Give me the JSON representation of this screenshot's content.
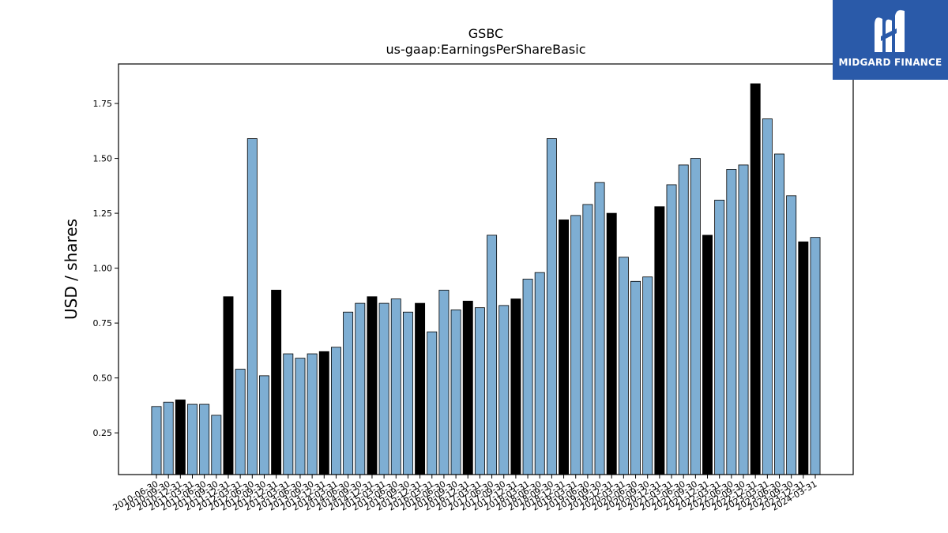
{
  "logo": {
    "text": "MIDGARD FINANCE"
  },
  "colors": {
    "regular": "#7eaed3",
    "highlight": "#000000",
    "logo_bg": "#2a5aa9"
  },
  "chart_data": {
    "type": "bar",
    "title": "GSBC",
    "subtitle": "us-gaap:EarningsPerShareBasic",
    "xlabel": "",
    "ylabel": "USD / shares",
    "ylim": [
      0.06,
      1.93
    ],
    "yticks": [
      0.25,
      0.5,
      0.75,
      1.0,
      1.25,
      1.5,
      1.75
    ],
    "grid": false,
    "categories": [
      "2010-06-30",
      "2010-09-30",
      "2010-12-31",
      "2011-03-31",
      "2011-06-30",
      "2011-09-30",
      "2011-12-31",
      "2012-03-31",
      "2012-06-30",
      "2012-09-30",
      "2012-12-31",
      "2013-03-31",
      "2013-06-30",
      "2013-09-30",
      "2013-12-31",
      "2014-03-31",
      "2014-06-30",
      "2014-09-30",
      "2014-12-31",
      "2015-03-31",
      "2015-06-30",
      "2015-09-30",
      "2015-12-31",
      "2016-03-31",
      "2016-06-30",
      "2016-09-30",
      "2016-12-31",
      "2017-03-31",
      "2017-06-30",
      "2017-09-30",
      "2017-12-31",
      "2018-03-31",
      "2018-06-30",
      "2018-09-30",
      "2018-12-31",
      "2019-03-31",
      "2019-06-30",
      "2019-09-30",
      "2019-12-31",
      "2020-03-31",
      "2020-06-30",
      "2020-09-30",
      "2020-12-31",
      "2021-03-31",
      "2021-06-30",
      "2021-09-30",
      "2021-12-31",
      "2022-03-31",
      "2022-06-30",
      "2022-09-30",
      "2022-12-31",
      "2023-03-31",
      "2023-06-30",
      "2023-09-30",
      "2023-12-31",
      "2024-03-31"
    ],
    "x_tick_labels": [
      "2010-06-30",
      "2010-09-30",
      "2010-12-31",
      "2011-03-31",
      "2011-06-30",
      "2011-09-30",
      "2011-12-31",
      "2012-03-31",
      "2012-06-30",
      "2012-09-30",
      "2012-12-31",
      "2013-03-31",
      "2013-06-30",
      "2013-09-30",
      "2013-12-31",
      "2014-03-31",
      "2014-06-30",
      "2014-09-30",
      "2014-12-31",
      "2015-03-31",
      "2015-06-30",
      "2015-09-30",
      "2015-12-31",
      "2016-03-31",
      "2016-06-30",
      "2016-09-30",
      "2016-12-31",
      "2017-03-31",
      "2017-06-30",
      "2017-09-30",
      "2017-12-31",
      "2018-03-31",
      "2018-06-30",
      "2018-09-30",
      "2018-12-31",
      "2019-03-31",
      "2019-06-30",
      "2019-09-30",
      "2019-12-31",
      "2020-03-31",
      "2020-06-30",
      "2020-09-30",
      "2020-12-31",
      "2021-03-31",
      "2021-06-30",
      "2021-09-30",
      "2021-12-31",
      "2022-03-31",
      "2022-06-30",
      "2022-09-30",
      "2022-12-31",
      "2023-03-31",
      "2023-06-30",
      "2023-09-30",
      "2023-12-31",
      "2024-03-31"
    ],
    "values": [
      0.37,
      0.39,
      0.4,
      0.38,
      0.38,
      0.33,
      0.87,
      0.54,
      1.59,
      0.51,
      0.9,
      0.61,
      0.59,
      0.61,
      0.62,
      0.64,
      0.8,
      0.84,
      0.87,
      0.84,
      0.86,
      0.8,
      0.84,
      0.71,
      0.9,
      0.81,
      0.85,
      0.82,
      1.15,
      0.83,
      0.86,
      0.95,
      0.98,
      1.59,
      1.22,
      1.24,
      1.29,
      1.39,
      1.25,
      1.05,
      0.94,
      0.96,
      1.28,
      1.38,
      1.47,
      1.5,
      1.15,
      1.31,
      1.45,
      1.47,
      1.84,
      1.68,
      1.52,
      1.33,
      1.12,
      1.14
    ],
    "highlight": [
      false,
      false,
      true,
      false,
      false,
      false,
      true,
      false,
      false,
      false,
      true,
      false,
      false,
      false,
      true,
      false,
      false,
      false,
      true,
      false,
      false,
      false,
      true,
      false,
      false,
      false,
      true,
      false,
      false,
      false,
      true,
      false,
      false,
      false,
      true,
      false,
      false,
      false,
      true,
      false,
      false,
      false,
      true,
      false,
      false,
      false,
      true,
      false,
      false,
      false,
      true,
      false,
      false,
      false,
      true,
      false
    ]
  }
}
